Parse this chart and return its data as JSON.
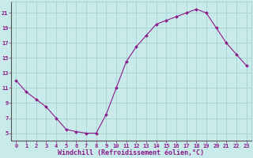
{
  "x": [
    0,
    1,
    2,
    3,
    4,
    5,
    6,
    7,
    8,
    9,
    10,
    11,
    12,
    13,
    14,
    15,
    16,
    17,
    18,
    19,
    20,
    21,
    22,
    23
  ],
  "y": [
    12.0,
    10.5,
    9.5,
    8.5,
    7.0,
    5.5,
    5.2,
    5.0,
    5.0,
    7.5,
    11.0,
    14.5,
    16.5,
    18.0,
    19.5,
    20.0,
    20.5,
    21.0,
    21.5,
    21.0,
    19.0,
    17.0,
    15.5,
    14.0
  ],
  "line_color": "#8b1a8b",
  "marker": "D",
  "marker_size": 2.0,
  "bg_color": "#c8eaea",
  "grid_color": "#9ecece",
  "xlabel": "Windchill (Refroidissement éolien,°C)",
  "xlim": [
    -0.5,
    23.5
  ],
  "ylim": [
    4.0,
    22.5
  ],
  "yticks": [
    5,
    7,
    9,
    11,
    13,
    15,
    17,
    19,
    21
  ],
  "xticks": [
    0,
    1,
    2,
    3,
    4,
    5,
    6,
    7,
    8,
    9,
    10,
    11,
    12,
    13,
    14,
    15,
    16,
    17,
    18,
    19,
    20,
    21,
    22,
    23
  ],
  "tick_color": "#8b1a8b",
  "axis_color": "#8b1a8b",
  "spine_color": "#7a7a7a",
  "font_size_ticks": 5.0,
  "font_size_xlabel": 6.0,
  "lw": 0.8
}
